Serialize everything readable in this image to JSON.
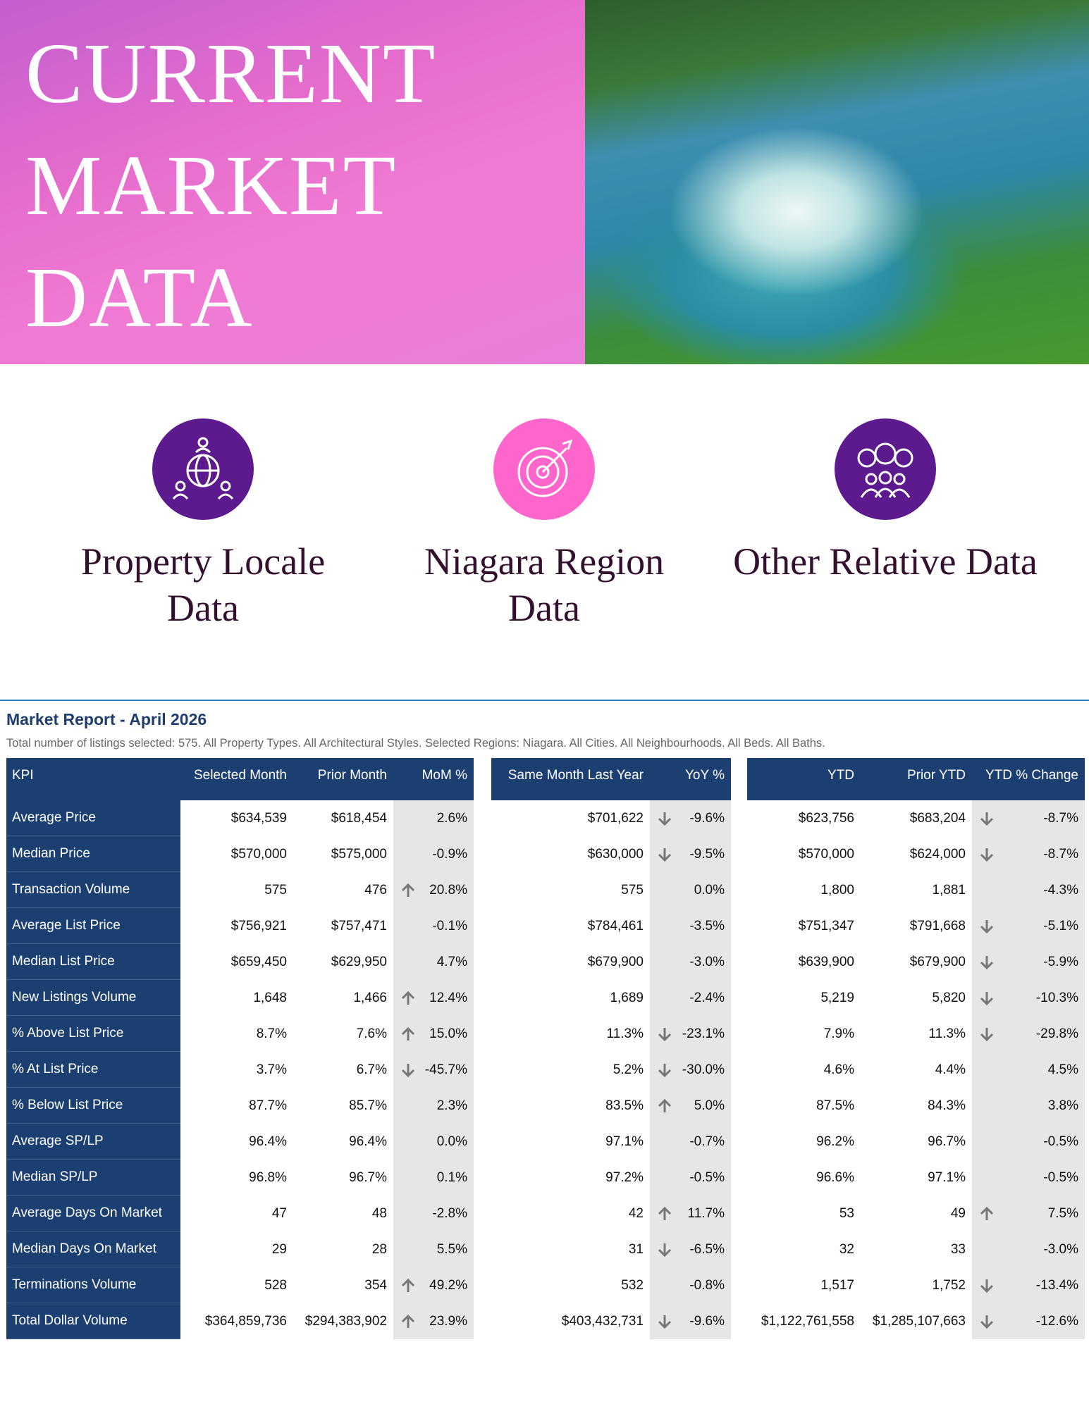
{
  "hero": {
    "title_lines": [
      "CURRENT",
      "MARKET",
      "DATA"
    ]
  },
  "cards": [
    {
      "label": "Property Locale Data"
    },
    {
      "label": "Niagara Region Data"
    },
    {
      "label": "Other Relative Data"
    }
  ],
  "report": {
    "title": "Market Report - April 2026",
    "subtitle": "Total number of listings selected: 575. All Property Types. All Architectural Styles. Selected Regions: Niagara. All Cities. All Neighbourhoods. All Beds. All Baths."
  },
  "table": {
    "columns": [
      "KPI",
      "Selected Month",
      "Prior Month",
      "MoM %",
      "Same Month Last Year",
      "YoY %",
      "YTD",
      "Prior YTD",
      "YTD % Change"
    ],
    "rows": [
      {
        "cells": [
          "Average Price",
          "$634,539",
          "$618,454",
          "2.6%",
          "$701,622",
          "-9.6%",
          "$623,756",
          "$683,204",
          "-8.7%"
        ],
        "arrows": [
          null,
          "down",
          "down"
        ]
      },
      {
        "cells": [
          "Median Price",
          "$570,000",
          "$575,000",
          "-0.9%",
          "$630,000",
          "-9.5%",
          "$570,000",
          "$624,000",
          "-8.7%"
        ],
        "arrows": [
          null,
          "down",
          "down"
        ]
      },
      {
        "cells": [
          "Transaction Volume",
          "575",
          "476",
          "20.8%",
          "575",
          "0.0%",
          "1,800",
          "1,881",
          "-4.3%"
        ],
        "arrows": [
          "up",
          null,
          null
        ]
      },
      {
        "cells": [
          "Average List Price",
          "$756,921",
          "$757,471",
          "-0.1%",
          "$784,461",
          "-3.5%",
          "$751,347",
          "$791,668",
          "-5.1%"
        ],
        "arrows": [
          null,
          null,
          "down"
        ]
      },
      {
        "cells": [
          "Median List Price",
          "$659,450",
          "$629,950",
          "4.7%",
          "$679,900",
          "-3.0%",
          "$639,900",
          "$679,900",
          "-5.9%"
        ],
        "arrows": [
          null,
          null,
          "down"
        ]
      },
      {
        "cells": [
          "New Listings Volume",
          "1,648",
          "1,466",
          "12.4%",
          "1,689",
          "-2.4%",
          "5,219",
          "5,820",
          "-10.3%"
        ],
        "arrows": [
          "up",
          null,
          "down"
        ]
      },
      {
        "cells": [
          "% Above List Price",
          "8.7%",
          "7.6%",
          "15.0%",
          "11.3%",
          "-23.1%",
          "7.9%",
          "11.3%",
          "-29.8%"
        ],
        "arrows": [
          "up",
          "down",
          "down"
        ]
      },
      {
        "cells": [
          "% At List Price",
          "3.7%",
          "6.7%",
          "-45.7%",
          "5.2%",
          "-30.0%",
          "4.6%",
          "4.4%",
          "4.5%"
        ],
        "arrows": [
          "down",
          "down",
          null
        ]
      },
      {
        "cells": [
          "% Below List Price",
          "87.7%",
          "85.7%",
          "2.3%",
          "83.5%",
          "5.0%",
          "87.5%",
          "84.3%",
          "3.8%"
        ],
        "arrows": [
          null,
          "up",
          null
        ]
      },
      {
        "cells": [
          "Average SP/LP",
          "96.4%",
          "96.4%",
          "0.0%",
          "97.1%",
          "-0.7%",
          "96.2%",
          "96.7%",
          "-0.5%"
        ],
        "arrows": [
          null,
          null,
          null
        ]
      },
      {
        "cells": [
          "Median SP/LP",
          "96.8%",
          "96.7%",
          "0.1%",
          "97.2%",
          "-0.5%",
          "96.6%",
          "97.1%",
          "-0.5%"
        ],
        "arrows": [
          null,
          null,
          null
        ]
      },
      {
        "cells": [
          "Average Days On Market",
          "47",
          "48",
          "-2.8%",
          "42",
          "11.7%",
          "53",
          "49",
          "7.5%"
        ],
        "arrows": [
          null,
          "up",
          "up"
        ]
      },
      {
        "cells": [
          "Median Days On Market",
          "29",
          "28",
          "5.5%",
          "31",
          "-6.5%",
          "32",
          "33",
          "-3.0%"
        ],
        "arrows": [
          null,
          "down",
          null
        ]
      },
      {
        "cells": [
          "Terminations Volume",
          "528",
          "354",
          "49.2%",
          "532",
          "-0.8%",
          "1,517",
          "1,752",
          "-13.4%"
        ],
        "arrows": [
          "up",
          null,
          "down"
        ]
      },
      {
        "cells": [
          "Total Dollar Volume",
          "$364,859,736",
          "$294,383,902",
          "23.9%",
          "$403,432,731",
          "-9.6%",
          "$1,122,761,558",
          "$1,285,107,663",
          "-12.6%"
        ],
        "arrows": [
          "up",
          "down",
          "down"
        ]
      }
    ]
  }
}
